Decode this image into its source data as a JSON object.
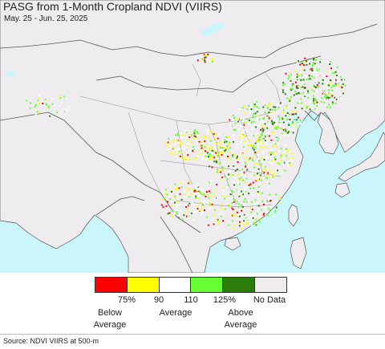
{
  "map": {
    "title": "PASG from 1-Month Cropland NDVI (VIIRS)",
    "subtitle": "May. 25 - Jun. 25, 2025",
    "colors": {
      "ocean": "#c9f5fb",
      "land": "#eeecef",
      "border": "#555555",
      "province": "#888888"
    }
  },
  "legend": {
    "swatches": [
      {
        "name": "below-75",
        "color": "#ff0000"
      },
      {
        "name": "75-90",
        "color": "#ffff00"
      },
      {
        "name": "90-110",
        "color": "#ffffff"
      },
      {
        "name": "110-125",
        "color": "#66ff33"
      },
      {
        "name": "above-125",
        "color": "#2a7d0a"
      },
      {
        "name": "no-data",
        "color": "#eeecef"
      }
    ],
    "ticks": [
      "75%",
      "90",
      "110",
      "125%",
      "No Data"
    ],
    "categories": {
      "below": "Below\nAverage",
      "average": "Average",
      "above": "Above\nAverage"
    }
  },
  "footer": {
    "source": "Source: NDVI VIIRS at 500-m"
  }
}
